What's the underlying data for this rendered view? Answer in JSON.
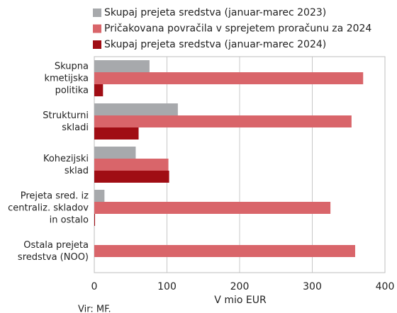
{
  "chart_data": {
    "type": "bar",
    "orientation": "horizontal",
    "categories": [
      "Skupna\nkmetijska\npolitika",
      "Strukturni\nskladi",
      "Kohezijski\nsklad",
      "Prejeta sred. iz\ncentraliz. skladov\nin ostalo",
      "Ostala prejeta\nsredstva (NOO)"
    ],
    "series": [
      {
        "name": "Skupaj prejeta sredstva (januar-marec 2023)",
        "color": "#a7a9ac",
        "values": [
          76,
          115,
          57,
          14,
          0
        ]
      },
      {
        "name": "Pričakovana povračila v sprejetem proračunu za 2024",
        "color": "#d9656a",
        "values": [
          370,
          354,
          102,
          325,
          359
        ]
      },
      {
        "name": "Skupaj prejeta sredstva (januar-marec 2024)",
        "color": "#a00d14",
        "values": [
          12,
          61,
          103,
          1,
          0
        ]
      }
    ],
    "xlabel": "V mio EUR",
    "xlim": [
      0,
      400
    ],
    "xticks": [
      0,
      100,
      200,
      300,
      400
    ],
    "grid": true,
    "source": "Vir: MF."
  }
}
